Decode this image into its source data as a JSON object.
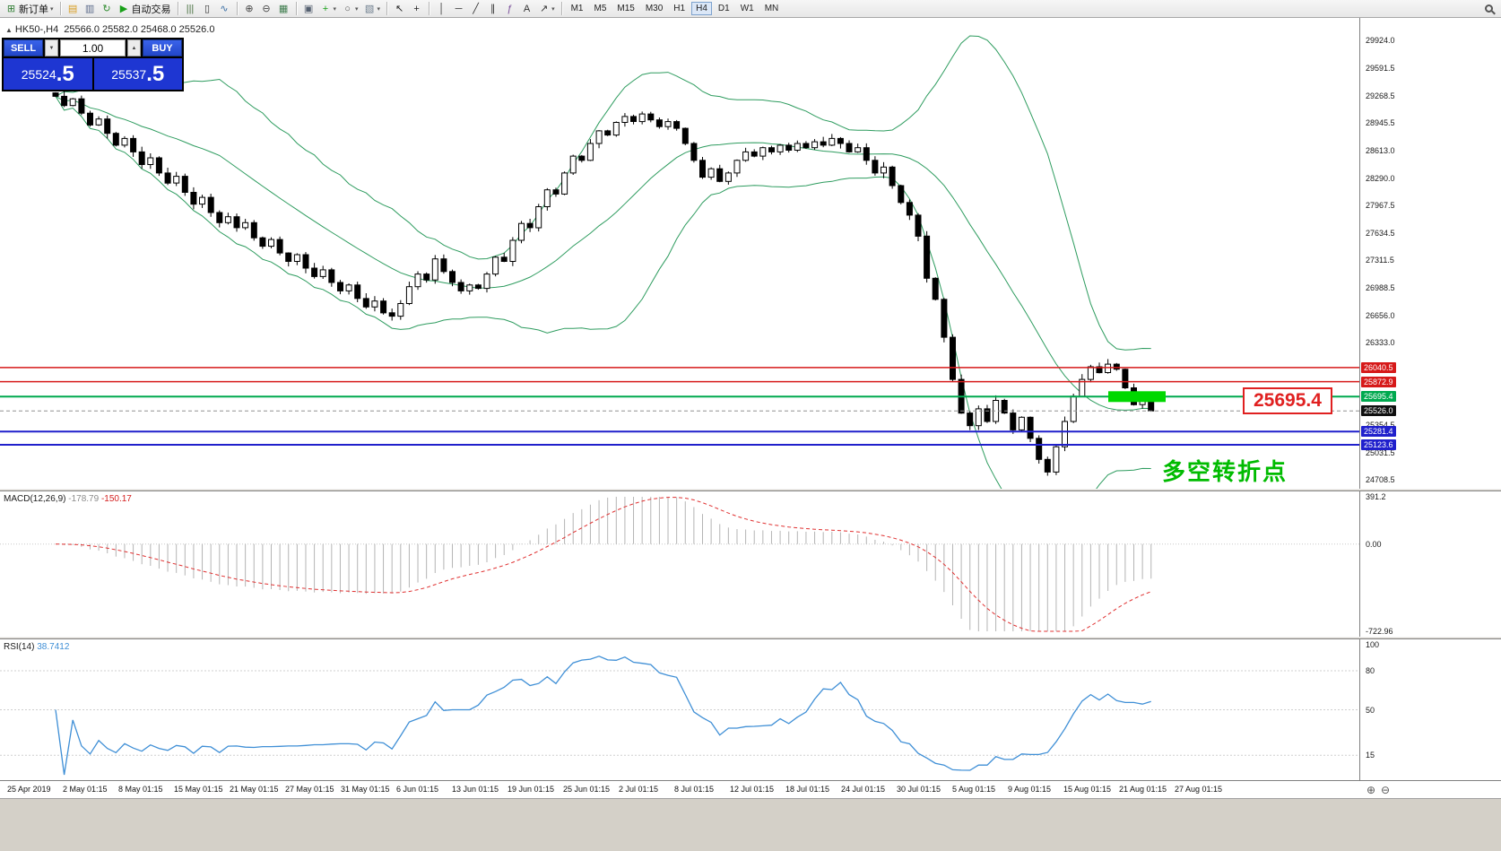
{
  "toolbar": {
    "items": [
      {
        "name": "new-order-button",
        "glyph": "⊞",
        "glyph_color": "#2e7d32",
        "label": "新订单",
        "dropdown": true
      },
      {
        "sep": true
      },
      {
        "name": "favorites-icon",
        "glyph": "▤",
        "glyph_color": "#d89c1e"
      },
      {
        "name": "charts-window-icon",
        "glyph": "▥",
        "glyph_color": "#5b6a8a"
      },
      {
        "name": "refresh-icon",
        "glyph": "↻",
        "glyph_color": "#2e8b2e"
      },
      {
        "name": "autotrade-button",
        "glyph": "▶",
        "glyph_color": "#18a018",
        "label": "自动交易"
      },
      {
        "sep": true
      },
      {
        "name": "bar-chart-icon",
        "glyph": "|||",
        "glyph_color": "#47703f"
      },
      {
        "name": "candlestick-chart-icon",
        "glyph": "▯",
        "glyph_color": "#333333"
      },
      {
        "name": "line-chart-icon",
        "glyph": "∿",
        "glyph_color": "#3a6ea5"
      },
      {
        "sep": true
      },
      {
        "name": "zoom-in-icon",
        "glyph": "⊕",
        "glyph_color": "#444444"
      },
      {
        "name": "zoom-out-icon",
        "glyph": "⊖",
        "glyph_color": "#444444"
      },
      {
        "name": "grid-icon",
        "glyph": "▦",
        "glyph_color": "#3f7d4e"
      },
      {
        "sep": true
      },
      {
        "name": "tile-windows-icon",
        "glyph": "▣",
        "glyph_color": "#556070"
      },
      {
        "name": "indicators-icon",
        "glyph": "+",
        "glyph_color": "#18a018",
        "dropdown": true
      },
      {
        "name": "periods-icon",
        "glyph": "○",
        "glyph_color": "#555555",
        "dropdown": true
      },
      {
        "name": "templates-icon",
        "glyph": "▧",
        "glyph_color": "#6f7f8f",
        "dropdown": true
      },
      {
        "sep": true
      },
      {
        "name": "cursor-icon",
        "glyph": "↖",
        "glyph_color": "#222222"
      },
      {
        "name": "crosshair-icon",
        "glyph": "+",
        "glyph_color": "#222222"
      },
      {
        "sep": true
      },
      {
        "name": "vertical-line-icon",
        "glyph": "│",
        "glyph_color": "#333333"
      },
      {
        "name": "horizontal-line-icon",
        "glyph": "─",
        "glyph_color": "#333333"
      },
      {
        "name": "trendline-icon",
        "glyph": "╱",
        "glyph_color": "#333333"
      },
      {
        "name": "channel-icon",
        "glyph": "∥",
        "glyph_color": "#333333"
      },
      {
        "name": "fibonacci-icon",
        "glyph": "ƒ",
        "glyph_color": "#7a4f9a"
      },
      {
        "name": "text-tool-icon",
        "glyph": "A",
        "glyph_color": "#333333"
      },
      {
        "name": "arrows-tool-icon",
        "glyph": "↗",
        "glyph_color": "#333333",
        "dropdown": true
      },
      {
        "sep": true
      }
    ],
    "timeframes": [
      "M1",
      "M5",
      "M15",
      "M30",
      "H1",
      "H4",
      "D1",
      "W1",
      "MN"
    ],
    "active_timeframe": "H4"
  },
  "symbol_info": {
    "symbol": "HK50-,H4",
    "ohlc": "25566.0 25582.0 25468.0 25526.0"
  },
  "trade_panel": {
    "sell_label": "SELL",
    "buy_label": "BUY",
    "volume": "1.00",
    "bid": {
      "main": "25524",
      "big": ".5"
    },
    "ask": {
      "main": "25537",
      "big": ".5"
    }
  },
  "main_chart": {
    "callout": "25695.4",
    "annotation": "多空转折点"
  },
  "price_axis": {
    "regular": [
      "29924.0",
      "29591.5",
      "29268.5",
      "28945.5",
      "28613.0",
      "28290.0",
      "27967.5",
      "27634.5",
      "27311.5",
      "26988.5",
      "26656.0",
      "26333.0",
      "25354.5",
      "25031.5",
      "24708.5"
    ],
    "badges": [
      {
        "text": "26040.5",
        "value": 26040.5,
        "bg": "#d61a1a"
      },
      {
        "text": "25872.9",
        "value": 25872.9,
        "bg": "#d61a1a"
      },
      {
        "text": "25695.4",
        "value": 25695.4,
        "bg": "#00a94f"
      },
      {
        "text": "25526.0",
        "value": 25526.0,
        "bg": "#101010"
      },
      {
        "text": "25281.4",
        "value": 25281.4,
        "bg": "#2020cc"
      },
      {
        "text": "25123.6",
        "value": 25123.6,
        "bg": "#2020cc"
      }
    ]
  },
  "macd_panel": {
    "title": "MACD(12,26,9)",
    "value": "-178.79",
    "signal_value": "-150.17",
    "axis": [
      {
        "text": "391.2",
        "value": 391.2
      },
      {
        "text": "0.00",
        "value": 0
      },
      {
        "text": "-722.96",
        "value": -722.96
      }
    ],
    "max": 391.2,
    "min": -722.96
  },
  "rsi_panel": {
    "title": "RSI(14)",
    "value": "38.7412",
    "axis": [
      {
        "text": "100",
        "value": 100
      },
      {
        "text": "80",
        "value": 80
      },
      {
        "text": "50",
        "value": 50
      },
      {
        "text": "15",
        "value": 15
      }
    ],
    "levels": [
      80,
      50,
      15
    ]
  },
  "time_axis": [
    "25 Apr 2019",
    "2 May 01:15",
    "8 May 01:15",
    "15 May 01:15",
    "21 May 01:15",
    "27 May 01:15",
    "31 May 01:15",
    "6 Jun 01:15",
    "13 Jun 01:15",
    "19 Jun 01:15",
    "25 Jun 01:15",
    "2 Jul 01:15",
    "8 Jul 01:15",
    "12 Jul 01:15",
    "18 Jul 01:15",
    "24 Jul 01:15",
    "30 Jul 01:15",
    "5 Aug 01:15",
    "9 Aug 01:15",
    "15 Aug 01:15",
    "21 Aug 01:15",
    "27 Aug 01:15"
  ],
  "chart_data": {
    "type": "candlestick",
    "symbol": "HK50-",
    "timeframe": "H4",
    "last_ohlc": {
      "open": 25566.0,
      "high": 25582.0,
      "low": 25468.0,
      "close": 25526.0
    },
    "price_scale": {
      "top": 29924.0,
      "bottom": 24708.5
    },
    "closes": [
      29260,
      29150,
      29230,
      29060,
      28920,
      28990,
      28820,
      28680,
      28760,
      28600,
      28450,
      28530,
      28350,
      28230,
      28310,
      28120,
      27980,
      28060,
      27880,
      27760,
      27830,
      27700,
      27760,
      27580,
      27480,
      27560,
      27400,
      27300,
      27380,
      27220,
      27120,
      27200,
      27050,
      26950,
      27020,
      26860,
      26760,
      26830,
      26690,
      26650,
      26800,
      27000,
      27150,
      27080,
      27330,
      27180,
      27050,
      26950,
      27020,
      26980,
      27150,
      27350,
      27300,
      27550,
      27750,
      27700,
      27950,
      28150,
      28100,
      28350,
      28550,
      28500,
      28700,
      28850,
      28800,
      28950,
      29020,
      28960,
      29050,
      28980,
      28900,
      28960,
      28880,
      28700,
      28500,
      28300,
      28400,
      28250,
      28350,
      28500,
      28600,
      28550,
      28650,
      28600,
      28680,
      28620,
      28700,
      28650,
      28720,
      28680,
      28760,
      28700,
      28600,
      28650,
      28500,
      28350,
      28420,
      28200,
      28000,
      27850,
      27600,
      27100,
      26850,
      26400,
      25900,
      25500,
      25350,
      25550,
      25400,
      25650,
      25500,
      25300,
      25450,
      25200,
      24950,
      24800,
      25100,
      25400,
      25700,
      25900,
      26050,
      25980,
      26080,
      26020,
      25800,
      25600,
      25680,
      25526
    ],
    "overlays": {
      "bollinger_period": 20,
      "bollinger_dev": 2,
      "band_color": "#2e9c5f"
    },
    "hlines": [
      {
        "value": 26040.5,
        "color": "#d61a1a",
        "width": 1.5
      },
      {
        "value": 25872.9,
        "color": "#d61a1a",
        "width": 1.5
      },
      {
        "value": 25695.4,
        "color": "#00a94f",
        "width": 2
      },
      {
        "value": 25281.4,
        "color": "#2020cc",
        "width": 2
      },
      {
        "value": 25123.6,
        "color": "#2020cc",
        "width": 2
      }
    ],
    "current_price": 25526.0,
    "zone": {
      "price": 25695.4,
      "color": "#00d800"
    },
    "indicators": {
      "macd": [
        12,
        26,
        9
      ],
      "rsi": 14
    }
  }
}
